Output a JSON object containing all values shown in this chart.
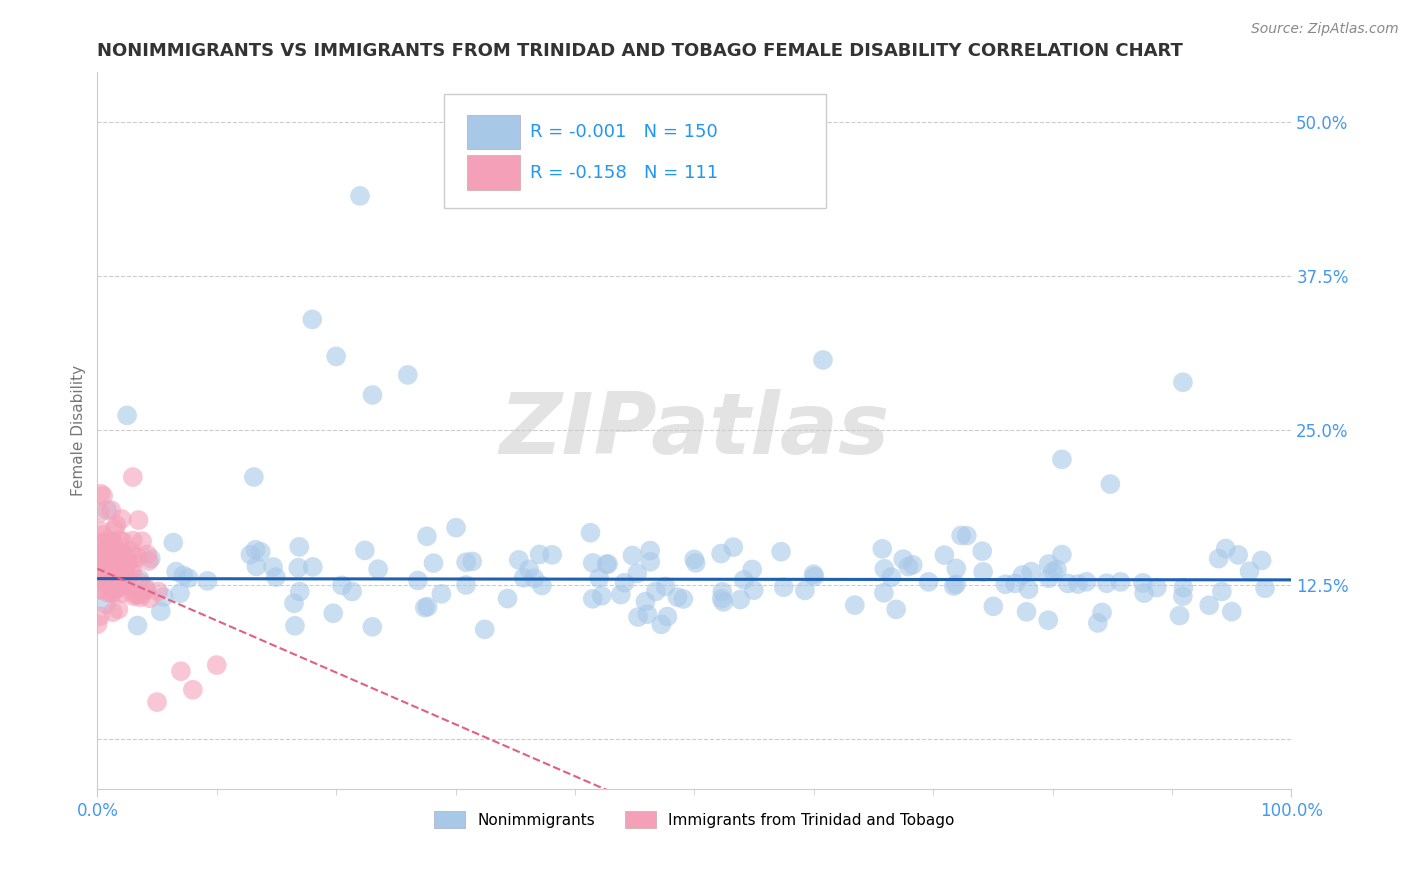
{
  "title": "NONIMMIGRANTS VS IMMIGRANTS FROM TRINIDAD AND TOBAGO FEMALE DISABILITY CORRELATION CHART",
  "source": "Source: ZipAtlas.com",
  "ylabel": "Female Disability",
  "xlim": [
    0,
    1
  ],
  "ylim": [
    -0.04,
    0.54
  ],
  "yticks": [
    0.0,
    0.125,
    0.25,
    0.375,
    0.5
  ],
  "ytick_labels": [
    "",
    "12.5%",
    "25.0%",
    "37.5%",
    "50.0%"
  ],
  "xtick_labels": [
    "0.0%",
    "100.0%"
  ],
  "legend_R1": "-0.001",
  "legend_N1": "150",
  "legend_R2": "-0.158",
  "legend_N2": "111",
  "blue_color": "#a8c8e8",
  "pink_color": "#f4a0b8",
  "blue_trend_color": "#2060b0",
  "pink_trend_color": "#e06080",
  "background_color": "#ffffff",
  "watermark": "ZIPatlas",
  "title_fontsize": 13,
  "label_fontsize": 11,
  "tick_fontsize": 12,
  "source_fontsize": 10,
  "legend_text_color_blue": "#2196F3",
  "legend_text_color_pink": "#e91e8c",
  "tick_color": "#4499ee",
  "grid_color": "#cccccc",
  "spine_color": "#cccccc",
  "ylabel_color": "#777777",
  "title_color": "#333333"
}
